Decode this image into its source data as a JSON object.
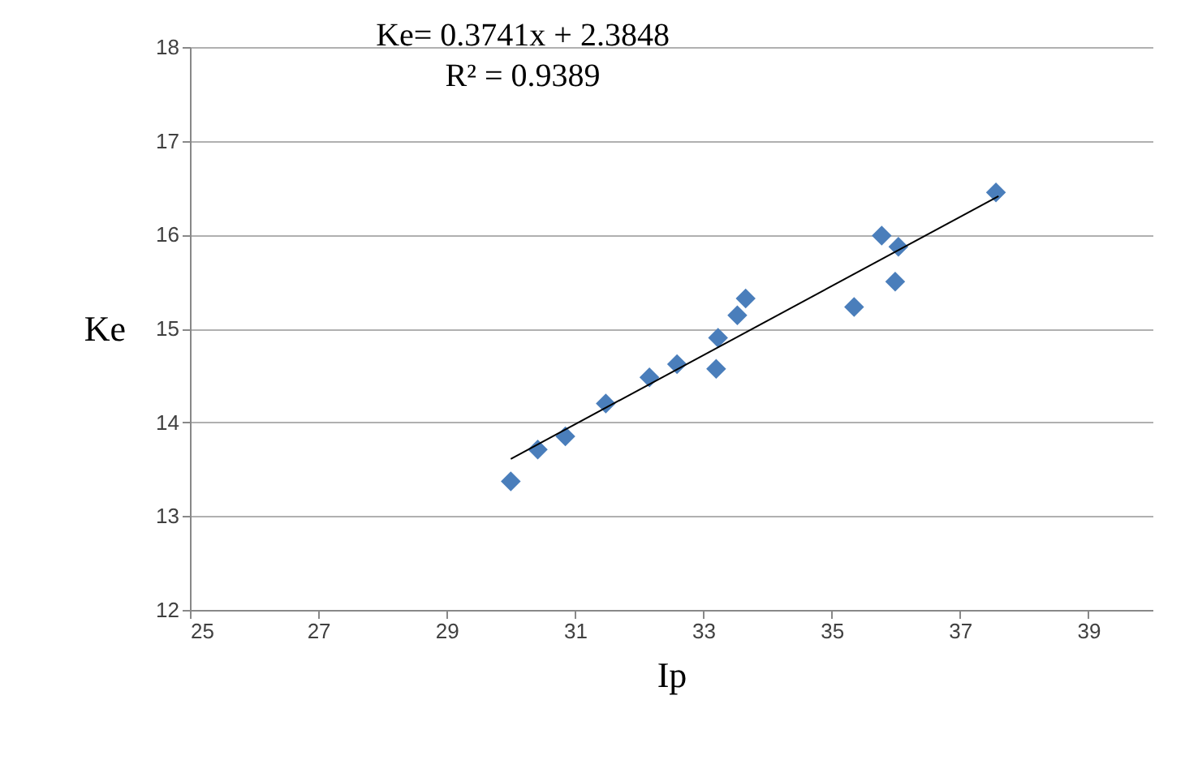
{
  "chart_data": {
    "type": "scatter",
    "xlabel": "Ip",
    "ylabel": "Ke",
    "xlim": [
      25,
      40
    ],
    "xticks": [
      25,
      27,
      29,
      31,
      33,
      35,
      37,
      39
    ],
    "ylim": [
      12,
      18
    ],
    "yticks": [
      12,
      13,
      14,
      15,
      16,
      17,
      18
    ],
    "grid": "y",
    "marker": "diamond",
    "annotations": [
      "Ke= 0.3741x + 2.3848",
      "R² = 0.9389"
    ],
    "series": [
      {
        "color": "#4a7ebb",
        "x": [
          30.0,
          30.42,
          30.85,
          31.48,
          32.16,
          32.59,
          33.2,
          33.23,
          33.53,
          33.66,
          35.35,
          35.99,
          35.78,
          36.04,
          37.56
        ],
        "values": [
          13.37,
          13.71,
          13.85,
          14.2,
          14.48,
          14.62,
          14.57,
          14.9,
          15.14,
          15.32,
          15.23,
          15.5,
          15.99,
          15.87,
          16.45
        ]
      },
      {
        "type": "line",
        "color": "#000000",
        "x": [
          30.0,
          37.6
        ],
        "values": [
          13.61,
          16.41
        ],
        "line_style": "solid",
        "marker": "none"
      }
    ]
  }
}
